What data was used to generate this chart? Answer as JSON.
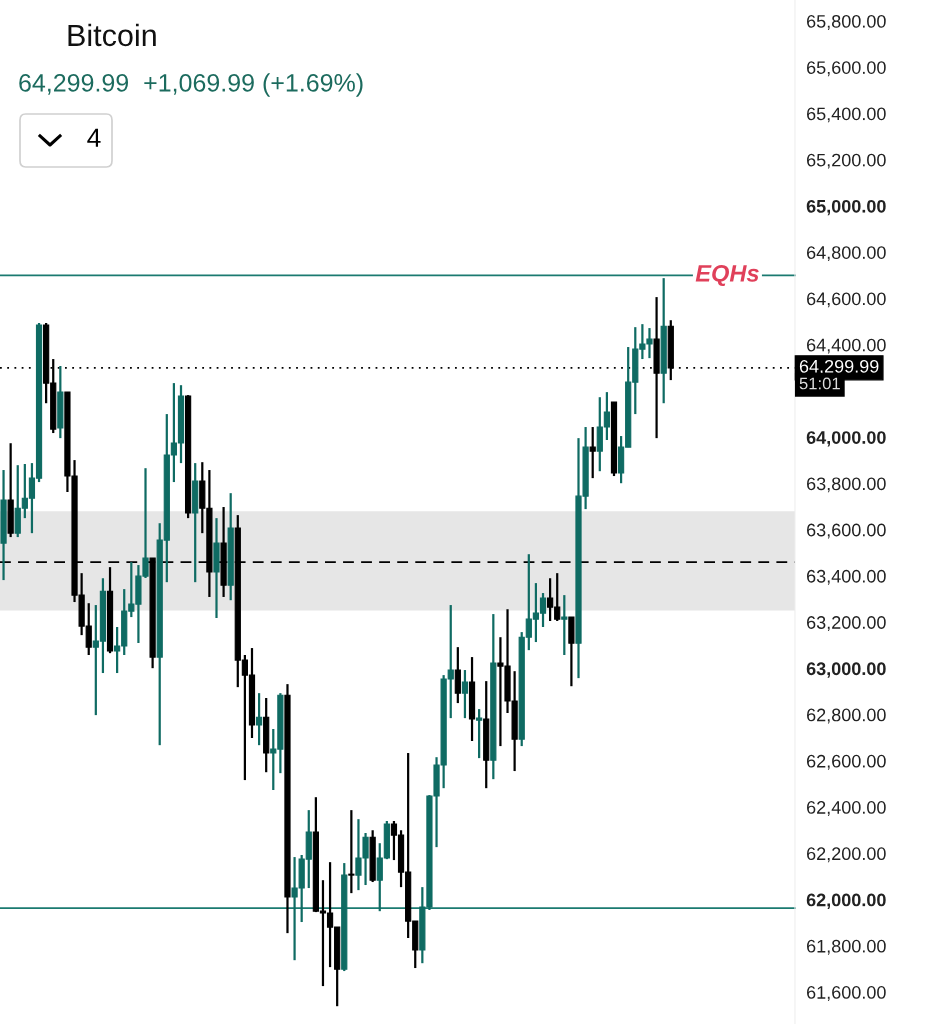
{
  "chart_data": {
    "type": "candlestick",
    "title": "Bitcoin",
    "subtitle": "64,299.99  +1,069.99 (+1.69%)",
    "annotations": [
      "4",
      "51:01"
    ],
    "categories": [
      null,
      null,
      null,
      null,
      null,
      null,
      null,
      null,
      null,
      null,
      null,
      null,
      null,
      null,
      null,
      null,
      null,
      null,
      null,
      null,
      null,
      null,
      null,
      null,
      null,
      null,
      null,
      null,
      null,
      null,
      null,
      null,
      null,
      null,
      null,
      null,
      null,
      null,
      null,
      null,
      null,
      null,
      null,
      null,
      null,
      null,
      null,
      null,
      null,
      null,
      null,
      null,
      null,
      null,
      null,
      null,
      null,
      null,
      null,
      null,
      null,
      null,
      null,
      null,
      null,
      null,
      null,
      null,
      null,
      null,
      null,
      null,
      null,
      null,
      null,
      null,
      null,
      null,
      null,
      null,
      null,
      null,
      null,
      null,
      null,
      null,
      null,
      null,
      null,
      null,
      null,
      null,
      null,
      null,
      null,
      null,
      null,
      null,
      null,
      null,
      null,
      null,
      null,
      null,
      null,
      null,
      null,
      null,
      null,
      null,
      null,
      null
    ],
    "ohlc": [
      [
        63542,
        63858,
        63382,
        63728
      ],
      [
        63728,
        63974,
        63568,
        63585
      ],
      [
        63585,
        63879,
        63568,
        63693
      ],
      [
        63693,
        63884,
        63650,
        63736
      ],
      [
        63736,
        63888,
        63585,
        63823
      ],
      [
        63823,
        64494,
        63806,
        64485
      ],
      [
        64485,
        64494,
        64147,
        64234
      ],
      [
        64234,
        64338,
        64018,
        64035
      ],
      [
        64040,
        64308,
        63996,
        64195
      ],
      [
        64195,
        64195,
        63763,
        63832
      ],
      [
        63832,
        63901,
        63287,
        63317
      ],
      [
        63317,
        63412,
        63144,
        63183
      ],
      [
        63183,
        63282,
        63058,
        63092
      ],
      [
        63092,
        63274,
        62798,
        63118
      ],
      [
        63118,
        63390,
        62980,
        63334
      ],
      [
        63334,
        63438,
        63066,
        63075
      ],
      [
        63075,
        63179,
        62980,
        63097
      ],
      [
        63097,
        63343,
        63058,
        63248
      ],
      [
        63248,
        63460,
        63222,
        63278
      ],
      [
        63278,
        63447,
        63110,
        63399
      ],
      [
        63399,
        63866,
        63391,
        63477
      ],
      [
        63477,
        63477,
        63001,
        63049
      ],
      [
        63049,
        63628,
        62668,
        63555
      ],
      [
        63555,
        64100,
        63373,
        63923
      ],
      [
        63923,
        64234,
        63806,
        63975
      ],
      [
        63975,
        64225,
        63888,
        64178
      ],
      [
        64178,
        64182,
        63650,
        63672
      ],
      [
        63672,
        63888,
        63373,
        63810
      ],
      [
        63810,
        63892,
        63585,
        63693
      ],
      [
        63693,
        63858,
        63309,
        63417
      ],
      [
        63417,
        63650,
        63218,
        63542
      ],
      [
        63542,
        63698,
        63309,
        63360
      ],
      [
        63360,
        63758,
        63295,
        63607
      ],
      [
        63607,
        63663,
        62919,
        63036
      ],
      [
        63036,
        63058,
        62517,
        62971
      ],
      [
        62971,
        63088,
        62699,
        62755
      ],
      [
        62755,
        62893,
        62668,
        62789
      ],
      [
        62789,
        62872,
        62551,
        62634
      ],
      [
        62634,
        62738,
        62474,
        62651
      ],
      [
        62651,
        62893,
        62547,
        62884
      ],
      [
        62884,
        62932,
        61855,
        62011
      ],
      [
        62011,
        62184,
        61738,
        62050
      ],
      [
        62050,
        62193,
        61903,
        62175
      ],
      [
        62175,
        62387,
        62050,
        62292
      ],
      [
        62292,
        62443,
        61946,
        61950
      ],
      [
        61950,
        62084,
        61626,
        61942
      ],
      [
        61942,
        62162,
        61708,
        61881
      ],
      [
        61881,
        61881,
        61539,
        61699
      ],
      [
        61699,
        62158,
        61691,
        62106
      ],
      [
        62110,
        62387,
        62028,
        62106
      ],
      [
        62106,
        62348,
        62041,
        62180
      ],
      [
        62180,
        62288,
        62063,
        62270
      ],
      [
        62270,
        62300,
        62076,
        62084
      ],
      [
        62084,
        62244,
        61950,
        62180
      ],
      [
        62180,
        62340,
        62175,
        62327
      ],
      [
        62327,
        62340,
        62171,
        62279
      ],
      [
        62279,
        62300,
        62054,
        62119
      ],
      [
        62119,
        62634,
        61834,
        61907
      ],
      [
        61907,
        61907,
        61704,
        61782
      ],
      [
        61782,
        62054,
        61725,
        61968
      ],
      [
        61968,
        62452,
        61955,
        62448
      ],
      [
        62448,
        62616,
        62227,
        62582
      ],
      [
        62582,
        62971,
        62482,
        62954
      ],
      [
        62954,
        63274,
        62785,
        62993
      ],
      [
        62993,
        63092,
        62850,
        62893
      ],
      [
        62893,
        62993,
        62785,
        62941
      ],
      [
        62941,
        63049,
        62686,
        62781
      ],
      [
        62776,
        62824,
        62612,
        62785
      ],
      [
        62781,
        62945,
        62482,
        62603
      ],
      [
        62603,
        63235,
        62521,
        63023
      ],
      [
        63023,
        63135,
        62664,
        63010
      ],
      [
        63010,
        63256,
        62807,
        62859
      ],
      [
        62859,
        62988,
        62556,
        62694
      ],
      [
        62694,
        63157,
        62664,
        63135
      ],
      [
        63135,
        63494,
        63079,
        63213
      ],
      [
        63213,
        63369,
        63114,
        63239
      ],
      [
        63239,
        63326,
        63179,
        63304
      ],
      [
        63304,
        63390,
        63205,
        63265
      ],
      [
        63265,
        63412,
        63205,
        63213
      ],
      [
        63213,
        63317,
        63058,
        63222
      ],
      [
        63222,
        63222,
        62923,
        63109
      ],
      [
        63109,
        63996,
        62958,
        63745
      ],
      [
        63745,
        64044,
        63689,
        63957
      ],
      [
        63957,
        64044,
        63823,
        63940
      ],
      [
        63940,
        64173,
        63853,
        64044
      ],
      [
        64044,
        64195,
        63988,
        64109
      ],
      [
        64152,
        64152,
        63832,
        63845
      ],
      [
        63845,
        64005,
        63801,
        63957
      ],
      [
        63957,
        64390,
        63957,
        64238
      ],
      [
        64238,
        64476,
        64100,
        64381
      ],
      [
        64381,
        64489,
        64338,
        64403
      ],
      [
        64403,
        64472,
        64342,
        64424
      ],
      [
        64424,
        64606,
        63996,
        64277
      ],
      [
        64277,
        64688,
        64147,
        64480
      ],
      [
        64480,
        64506,
        64247,
        64299.99
      ],
      null,
      null,
      null,
      null,
      null,
      null,
      null,
      null,
      null,
      null,
      null,
      null,
      null,
      null,
      null,
      null,
      null
    ],
    "colors": [
      "#0f6b63",
      "#000000",
      "#0f6b63",
      "#0f6b63",
      "#0f6b63",
      "#0f6b63",
      "#000000",
      "#000000",
      "#0f6b63",
      "#000000",
      "#000000",
      "#000000",
      "#000000",
      "#0f6b63",
      "#0f6b63",
      "#000000",
      "#0f6b63",
      "#0f6b63",
      "#0f6b63",
      "#0f6b63",
      "#0f6b63",
      "#000000",
      "#0f6b63",
      "#0f6b63",
      "#0f6b63",
      "#0f6b63",
      "#000000",
      "#0f6b63",
      "#000000",
      "#000000",
      "#0f6b63",
      "#000000",
      "#0f6b63",
      "#000000",
      "#000000",
      "#000000",
      "#0f6b63",
      "#000000",
      "#0f6b63",
      "#0f6b63",
      "#000000",
      "#0f6b63",
      "#0f6b63",
      "#0f6b63",
      "#000000",
      "#000000",
      "#000000",
      "#000000",
      "#0f6b63",
      "#000000",
      "#0f6b63",
      "#0f6b63",
      "#000000",
      "#0f6b63",
      "#0f6b63",
      "#000000",
      "#000000",
      "#000000",
      "#000000",
      "#0f6b63",
      "#0f6b63",
      "#0f6b63",
      "#0f6b63",
      "#0f6b63",
      "#000000",
      "#0f6b63",
      "#000000",
      "#0f6b63",
      "#000000",
      "#0f6b63",
      "#000000",
      "#000000",
      "#000000",
      "#0f6b63",
      "#0f6b63",
      "#0f6b63",
      "#0f6b63",
      "#000000",
      "#000000",
      "#0f6b63",
      "#000000",
      "#0f6b63",
      "#0f6b63",
      "#000000",
      "#0f6b63",
      "#0f6b63",
      "#000000",
      "#0f6b63",
      "#0f6b63",
      "#0f6b63",
      "#0f6b63",
      "#0f6b63",
      "#000000",
      "#0f6b63",
      "#000000",
      null,
      null,
      null,
      null,
      null,
      null,
      null,
      null,
      null,
      null,
      null,
      null,
      null,
      null,
      null,
      null,
      null
    ],
    "ylim": [
      61462,
      65891
    ],
    "yticks": [
      {
        "value": 61600,
        "label": "61,600.00"
      },
      {
        "value": 61800,
        "label": "61,800.00"
      },
      {
        "value": 62000,
        "label": "62,000.00"
      },
      {
        "value": 62200,
        "label": "62,200.00"
      },
      {
        "value": 62400,
        "label": "62,400.00"
      },
      {
        "value": 62600,
        "label": "62,600.00"
      },
      {
        "value": 62800,
        "label": "62,800.00"
      },
      {
        "value": 63000,
        "label": "63,000.00"
      },
      {
        "value": 63200,
        "label": "63,200.00"
      },
      {
        "value": 63400,
        "label": "63,400.00"
      },
      {
        "value": 63600,
        "label": "63,600.00"
      },
      {
        "value": 63800,
        "label": "63,800.00"
      },
      {
        "value": 64000,
        "label": "64,000.00"
      },
      {
        "value": 64400,
        "label": "64,400.00"
      },
      {
        "value": 64600,
        "label": "64,600.00"
      },
      {
        "value": 64800,
        "label": "64,800.00"
      },
      {
        "value": 65000,
        "label": "65,000.00"
      },
      {
        "value": 65200,
        "label": "65,200.00"
      },
      {
        "value": 65400,
        "label": "65,400.00"
      },
      {
        "value": 65600,
        "label": "65,600.00"
      },
      {
        "value": 65800,
        "label": "65,800.00"
      }
    ],
    "tick_labels": "y",
    "grid": false,
    "ref_lines": [
      {
        "axis": "y",
        "value": 64700,
        "label": "EQHs",
        "color": "#1a7a70",
        "line_style": "solid"
      },
      {
        "axis": "y",
        "value": 61963,
        "label": null,
        "color": "#1a7a70",
        "line_style": "solid"
      },
      {
        "axis": "y",
        "value": 64299.99,
        "label": "64,299.99",
        "color": "#000000",
        "line_style": "dotted"
      },
      {
        "axis": "y",
        "value": 63460,
        "label": null,
        "color": "#000000",
        "line_style": "dashed"
      }
    ],
    "bands": [
      {
        "axis": "y",
        "from": 63250,
        "to": 63680,
        "label": null,
        "color": "#e6e6e6"
      }
    ]
  }
}
